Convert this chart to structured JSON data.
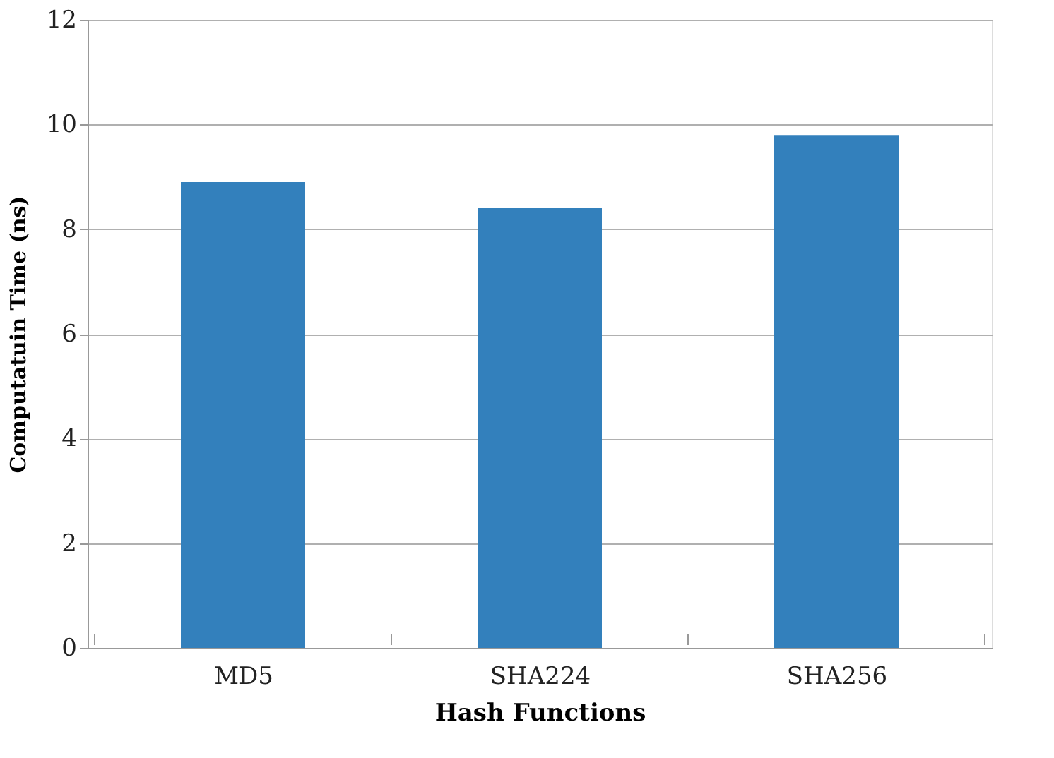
{
  "chart_data": {
    "type": "bar",
    "xlabel": "Hash Functions",
    "ylabel": "Computatuin Time (ns)",
    "categories": [
      "MD5",
      "SHA224",
      "SHA256"
    ],
    "values": [
      8.9,
      8.4,
      9.8
    ],
    "color": "#3380bc",
    "ylim": [
      0,
      12
    ],
    "yticks": [
      0,
      2,
      4,
      6,
      8,
      10,
      12
    ],
    "grid": "y"
  }
}
